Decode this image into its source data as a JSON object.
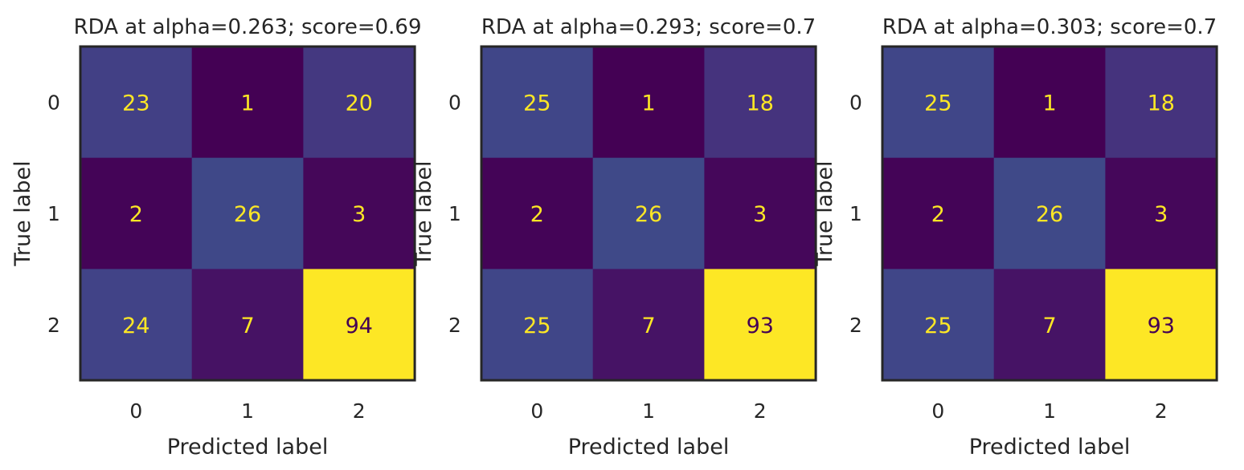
{
  "chart_data": [
    {
      "type": "heatmap",
      "title": "RDA at alpha=0.263; score=0.69",
      "xlabel": "Predicted label",
      "ylabel": "True label",
      "x_ticks": [
        "0",
        "1",
        "2"
      ],
      "y_ticks": [
        "0",
        "1",
        "2"
      ],
      "colormap": "viridis",
      "grid": false,
      "values": [
        [
          23,
          1,
          20
        ],
        [
          2,
          26,
          3
        ],
        [
          24,
          7,
          94
        ]
      ]
    },
    {
      "type": "heatmap",
      "title": "RDA at alpha=0.293; score=0.7",
      "xlabel": "Predicted label",
      "ylabel": "True label",
      "x_ticks": [
        "0",
        "1",
        "2"
      ],
      "y_ticks": [
        "0",
        "1",
        "2"
      ],
      "colormap": "viridis",
      "grid": false,
      "values": [
        [
          25,
          1,
          18
        ],
        [
          2,
          26,
          3
        ],
        [
          25,
          7,
          93
        ]
      ]
    },
    {
      "type": "heatmap",
      "title": "RDA at alpha=0.303; score=0.7",
      "xlabel": "Predicted label",
      "ylabel": "True label",
      "x_ticks": [
        "0",
        "1",
        "2"
      ],
      "y_ticks": [
        "0",
        "1",
        "2"
      ],
      "colormap": "viridis",
      "grid": false,
      "values": [
        [
          25,
          1,
          18
        ],
        [
          2,
          26,
          3
        ],
        [
          25,
          7,
          93
        ]
      ]
    }
  ],
  "colors": {
    "low_text": "#fde725",
    "high_text": "#440154",
    "frame": "#262626",
    "label_text": "#262626"
  }
}
